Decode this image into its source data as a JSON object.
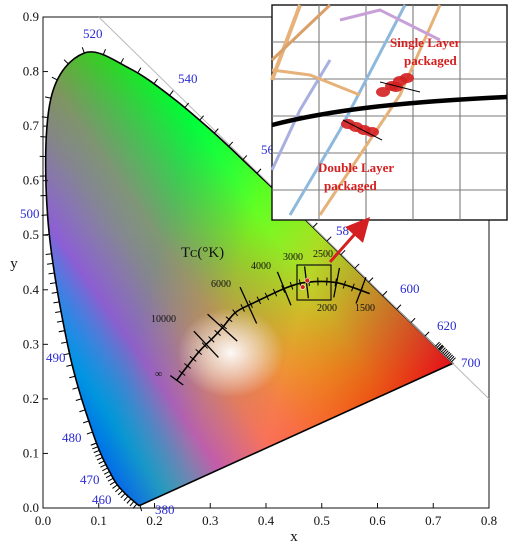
{
  "chart_data": {
    "type": "scatter",
    "title": "",
    "xlabel": "x",
    "ylabel": "y",
    "xlim": [
      0.0,
      0.8
    ],
    "ylim": [
      0.0,
      0.9
    ],
    "x_ticks": [
      "0.0",
      "0.1",
      "0.2",
      "0.3",
      "0.4",
      "0.5",
      "0.6",
      "0.7",
      "0.8"
    ],
    "y_ticks": [
      "0.0",
      "0.1",
      "0.2",
      "0.3",
      "0.4",
      "0.5",
      "0.6",
      "0.7",
      "0.8",
      "0.9"
    ],
    "grid": false,
    "spectral_locus": [
      {
        "x": 0.174,
        "y": 0.005
      },
      {
        "x": 0.173,
        "y": 0.005
      },
      {
        "x": 0.169,
        "y": 0.007
      },
      {
        "x": 0.144,
        "y": 0.03
      },
      {
        "x": 0.124,
        "y": 0.058
      },
      {
        "x": 0.091,
        "y": 0.133
      },
      {
        "x": 0.045,
        "y": 0.295
      },
      {
        "x": 0.008,
        "y": 0.538
      },
      {
        "x": 0.014,
        "y": 0.75
      },
      {
        "x": 0.074,
        "y": 0.834
      },
      {
        "x": 0.155,
        "y": 0.806
      },
      {
        "x": 0.23,
        "y": 0.754
      },
      {
        "x": 0.302,
        "y": 0.692
      },
      {
        "x": 0.373,
        "y": 0.624
      },
      {
        "x": 0.444,
        "y": 0.555
      },
      {
        "x": 0.512,
        "y": 0.487
      },
      {
        "x": 0.575,
        "y": 0.424
      },
      {
        "x": 0.627,
        "y": 0.372
      },
      {
        "x": 0.666,
        "y": 0.334
      },
      {
        "x": 0.735,
        "y": 0.265
      }
    ],
    "wavelength_labels": [
      {
        "label": "380",
        "x": 0.174,
        "y": 0.005
      },
      {
        "label": "460",
        "x": 0.144,
        "y": 0.03
      },
      {
        "label": "470",
        "x": 0.124,
        "y": 0.058
      },
      {
        "label": "480",
        "x": 0.091,
        "y": 0.133
      },
      {
        "label": "490",
        "x": 0.045,
        "y": 0.295
      },
      {
        "label": "500",
        "x": 0.008,
        "y": 0.538
      },
      {
        "label": "520",
        "x": 0.074,
        "y": 0.834
      },
      {
        "label": "540",
        "x": 0.23,
        "y": 0.754
      },
      {
        "label": "56",
        "x": 0.373,
        "y": 0.624
      },
      {
        "label": "58",
        "x": 0.512,
        "y": 0.487
      },
      {
        "label": "600",
        "x": 0.627,
        "y": 0.372
      },
      {
        "label": "620",
        "x": 0.691,
        "y": 0.308
      },
      {
        "label": "700",
        "x": 0.735,
        "y": 0.265
      }
    ],
    "planckian_locus": [
      {
        "x": 0.24,
        "y": 0.234
      },
      {
        "x": 0.253,
        "y": 0.252
      },
      {
        "x": 0.281,
        "y": 0.288
      },
      {
        "x": 0.305,
        "y": 0.312
      },
      {
        "x": 0.323,
        "y": 0.332
      },
      {
        "x": 0.346,
        "y": 0.359
      },
      {
        "x": 0.38,
        "y": 0.377
      },
      {
        "x": 0.437,
        "y": 0.404
      },
      {
        "x": 0.476,
        "y": 0.414
      },
      {
        "x": 0.527,
        "y": 0.413
      },
      {
        "x": 0.586,
        "y": 0.393
      }
    ],
    "cct_labels": [
      "∞",
      "10000",
      "6000",
      "4000",
      "3000",
      "2500",
      "2000",
      "1500"
    ],
    "cct_axis_label": "Tᴄ(°K)",
    "measured_points": [
      {
        "name": "Single Layer packaged",
        "x": 0.474,
        "y": 0.417
      },
      {
        "name": "Double Layer packaged",
        "x": 0.466,
        "y": 0.405
      }
    ],
    "inset": {
      "labels": [
        "Single Layer packaged",
        "Double Layer packaged"
      ]
    }
  },
  "inset_text": {
    "single_line1": "Single Layer",
    "single_line2": "packaged",
    "double_line1": "Double Layer",
    "double_line2": "packaged"
  },
  "colors": {
    "marker": "#d42020",
    "wavelength_text": "#2b2bd6",
    "locus_line": "#000000"
  }
}
